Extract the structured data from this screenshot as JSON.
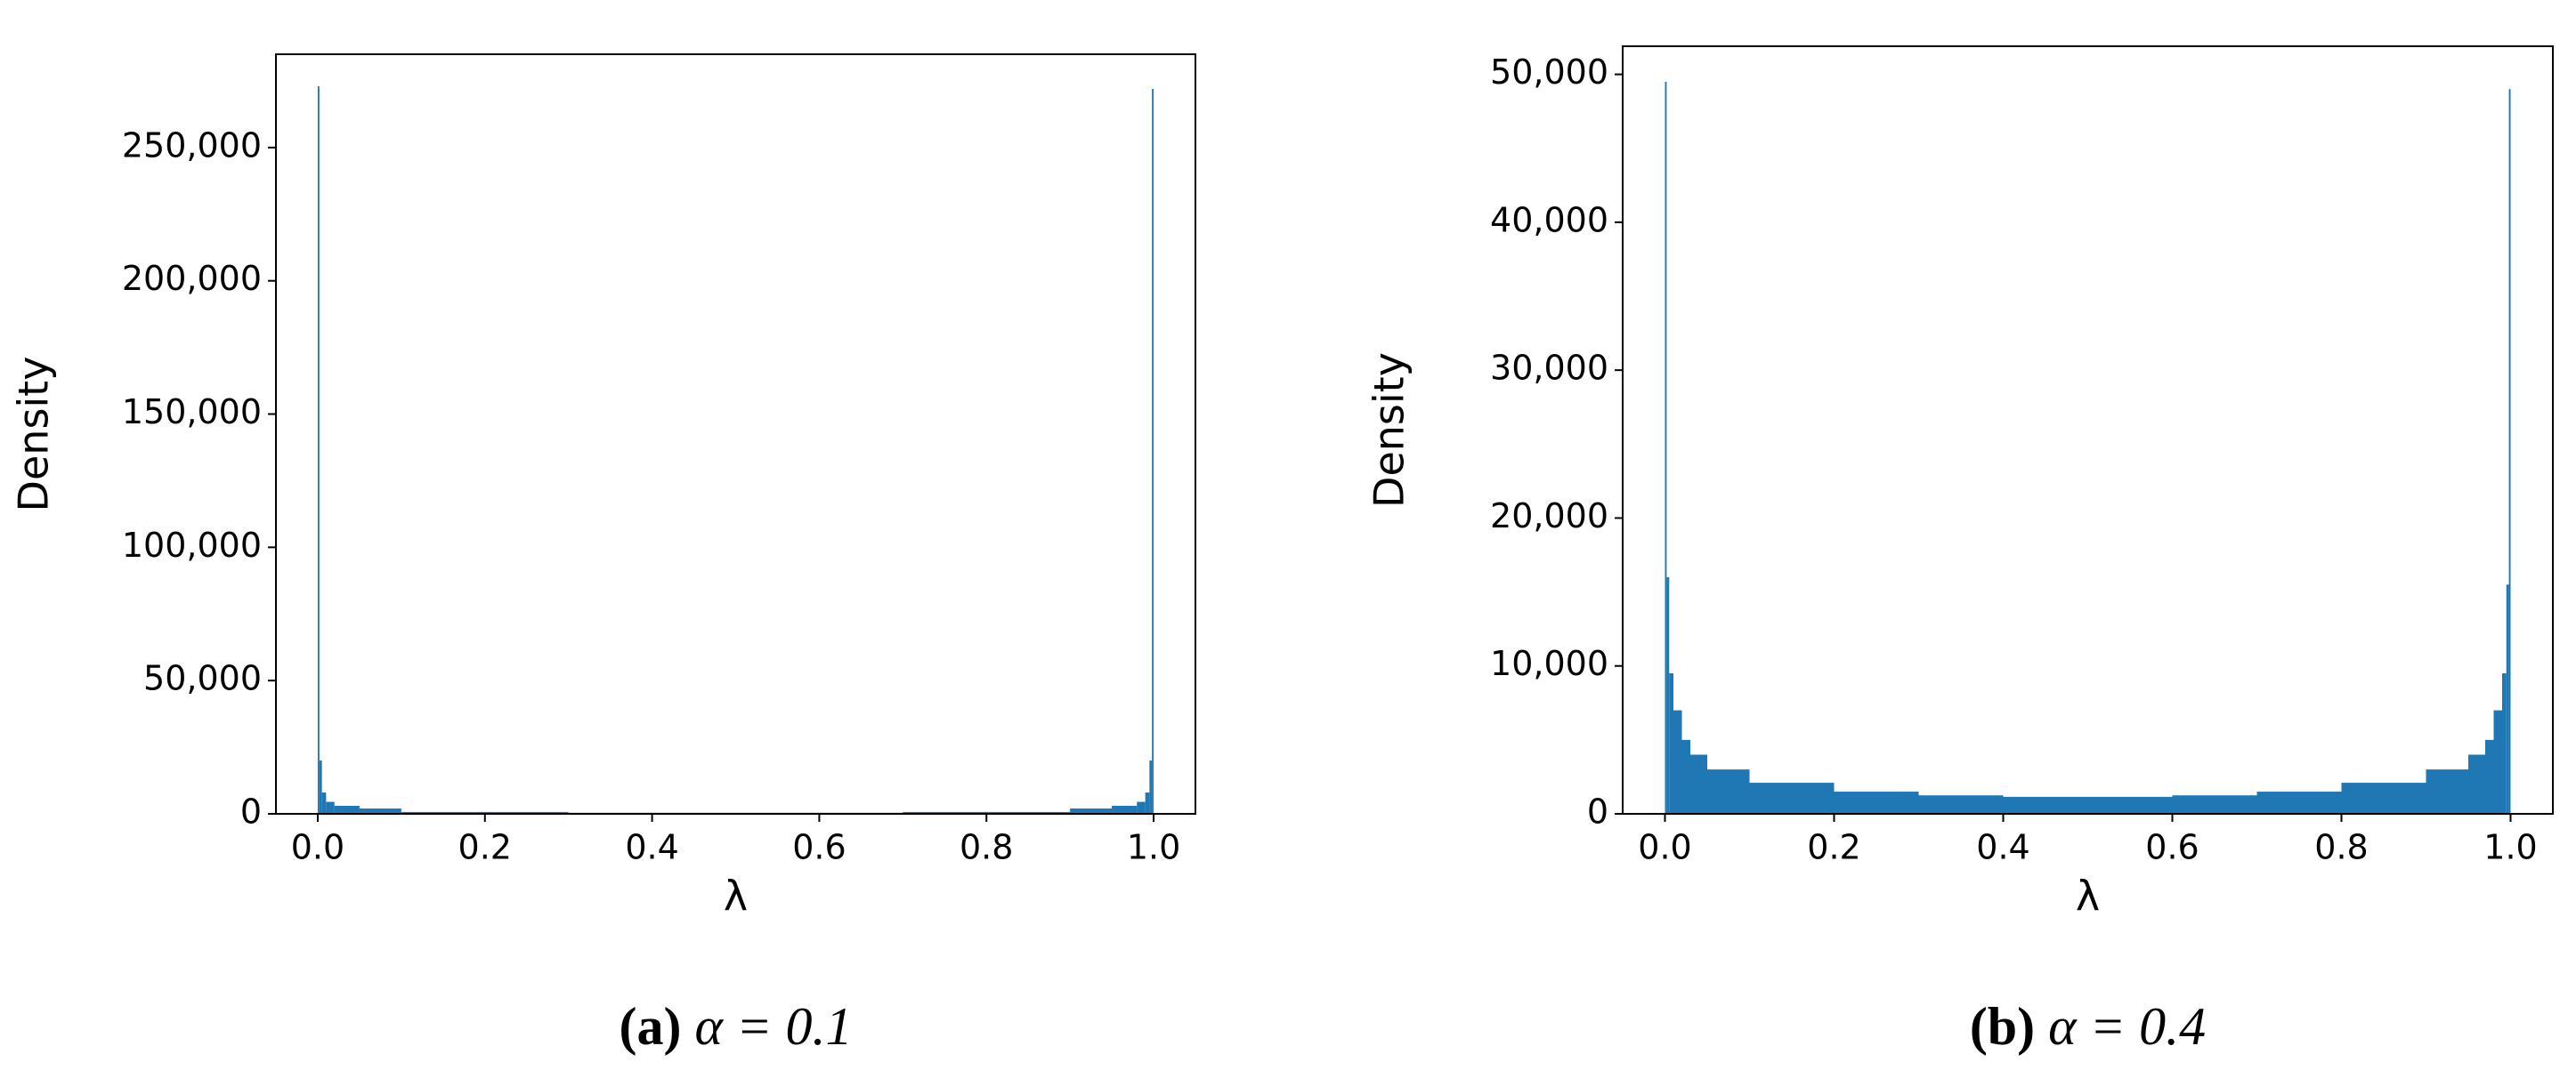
{
  "chart_data": [
    {
      "type": "histogram",
      "caption_label": "(a)",
      "caption": "α = 0.1",
      "xlabel": "λ",
      "ylabel": "Density",
      "color": "#1f77b4",
      "bins": [
        0,
        0.002,
        0.005,
        0.01,
        0.02,
        0.05,
        0.1,
        0.3,
        0.5,
        0.7,
        0.9,
        0.95,
        0.98,
        0.99,
        0.995,
        0.998,
        1
      ],
      "counts": [
        273000,
        20000,
        8000,
        4500,
        3000,
        2000,
        700,
        400,
        400,
        700,
        2000,
        3000,
        4500,
        8000,
        20000,
        272000
      ],
      "xlim": [
        -0.05,
        1.05
      ],
      "ylim": [
        0,
        285000
      ],
      "xticks": [
        {
          "value": 0,
          "label": "0.0"
        },
        0.2,
        0.4,
        0.6,
        0.8,
        {
          "value": 1,
          "label": "1.0"
        }
      ],
      "yticks": [
        0,
        {
          "value": 50000,
          "label": "50,000"
        },
        {
          "value": 100000,
          "label": "100,000"
        },
        {
          "value": 150000,
          "label": "150,000"
        },
        {
          "value": 200000,
          "label": "200,000"
        },
        {
          "value": 250000,
          "label": "250,000"
        }
      ]
    },
    {
      "type": "histogram",
      "caption_label": "(b)",
      "caption": "α = 0.4",
      "xlabel": "λ",
      "ylabel": "Density",
      "color": "#1f77b4",
      "bins": [
        0,
        0.002,
        0.005,
        0.01,
        0.02,
        0.03,
        0.05,
        0.1,
        0.2,
        0.3,
        0.4,
        0.5,
        0.6,
        0.7,
        0.8,
        0.9,
        0.95,
        0.97,
        0.98,
        0.99,
        0.995,
        0.998,
        1
      ],
      "counts": [
        49500,
        16000,
        9500,
        7000,
        5000,
        4000,
        3000,
        2100,
        1500,
        1250,
        1150,
        1150,
        1250,
        1500,
        2100,
        3000,
        4000,
        5000,
        7000,
        9500,
        15500,
        49000
      ],
      "xlim": [
        -0.05,
        1.05
      ],
      "ylim": [
        0,
        51900
      ],
      "xticks": [
        {
          "value": 0,
          "label": "0.0"
        },
        0.2,
        0.4,
        0.6,
        0.8,
        {
          "value": 1,
          "label": "1.0"
        }
      ],
      "yticks": [
        0,
        {
          "value": 10000,
          "label": "10,000"
        },
        {
          "value": 20000,
          "label": "20,000"
        },
        {
          "value": 30000,
          "label": "30,000"
        },
        {
          "value": 40000,
          "label": "40,000"
        },
        {
          "value": 50000,
          "label": "50,000"
        }
      ]
    }
  ]
}
